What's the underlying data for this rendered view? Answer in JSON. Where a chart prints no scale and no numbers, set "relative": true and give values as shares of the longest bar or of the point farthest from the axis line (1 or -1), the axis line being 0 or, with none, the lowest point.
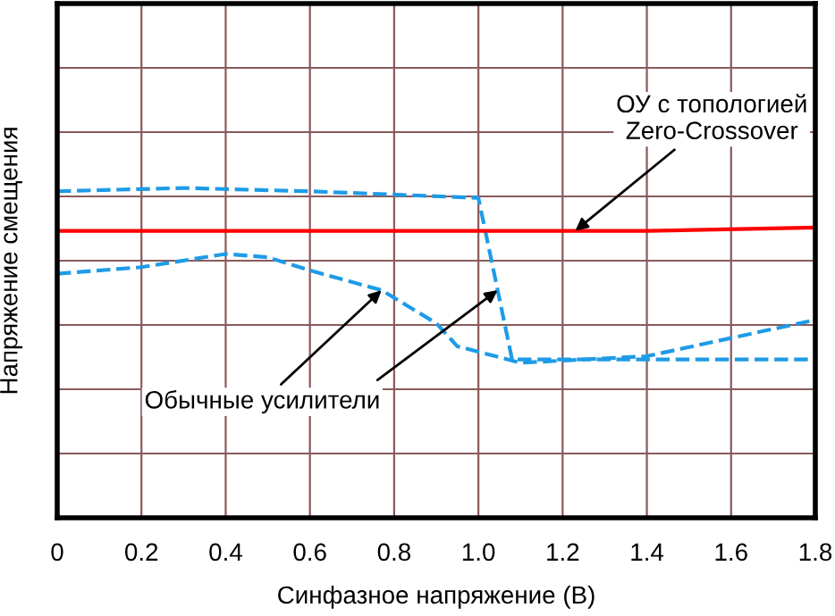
{
  "chart_data": {
    "type": "line",
    "relative": true,
    "xlabel": "Синфазное напряжение (В)",
    "ylabel": "Напряжение смещения",
    "xlim": [
      0,
      1.8
    ],
    "xticks": [
      0,
      0.2,
      0.4,
      0.6,
      0.8,
      {
        "value": 1.0,
        "label": "1.0"
      },
      1.2,
      1.4,
      1.6,
      1.8
    ],
    "tick_labels": "x",
    "grid": true,
    "legend": false,
    "marker": "none",
    "series": [
      {
        "color": "#1e9be6",
        "line_style": "dashed",
        "x": [
          0,
          0.3,
          0.6,
          1.0,
          1.08,
          1.2,
          1.8
        ],
        "values": [
          0.99,
          1.0,
          0.99,
          0.97,
          0.48,
          0.48,
          0.48
        ]
      },
      {
        "color": "#1e9be6",
        "line_style": "dashed",
        "x": [
          0,
          0.2,
          0.4,
          0.5,
          0.6,
          0.77,
          0.9,
          0.95,
          1.1,
          1.4,
          1.8
        ],
        "values": [
          0.74,
          0.76,
          0.8,
          0.79,
          0.75,
          0.69,
          0.59,
          0.52,
          0.47,
          0.49,
          0.6
        ]
      },
      {
        "color": "#ff0000",
        "line_style": "solid",
        "x": [
          0,
          1.4,
          1.8
        ],
        "values": [
          0.87,
          0.87,
          0.88
        ]
      }
    ],
    "annotations": [
      {
        "text": "ОУ с топологией\nZero-Crossover",
        "x": 1.23,
        "y": 0.87
      },
      {
        "text": "Обычные усилители",
        "x": 0.77,
        "y": 0.69
      }
    ]
  }
}
